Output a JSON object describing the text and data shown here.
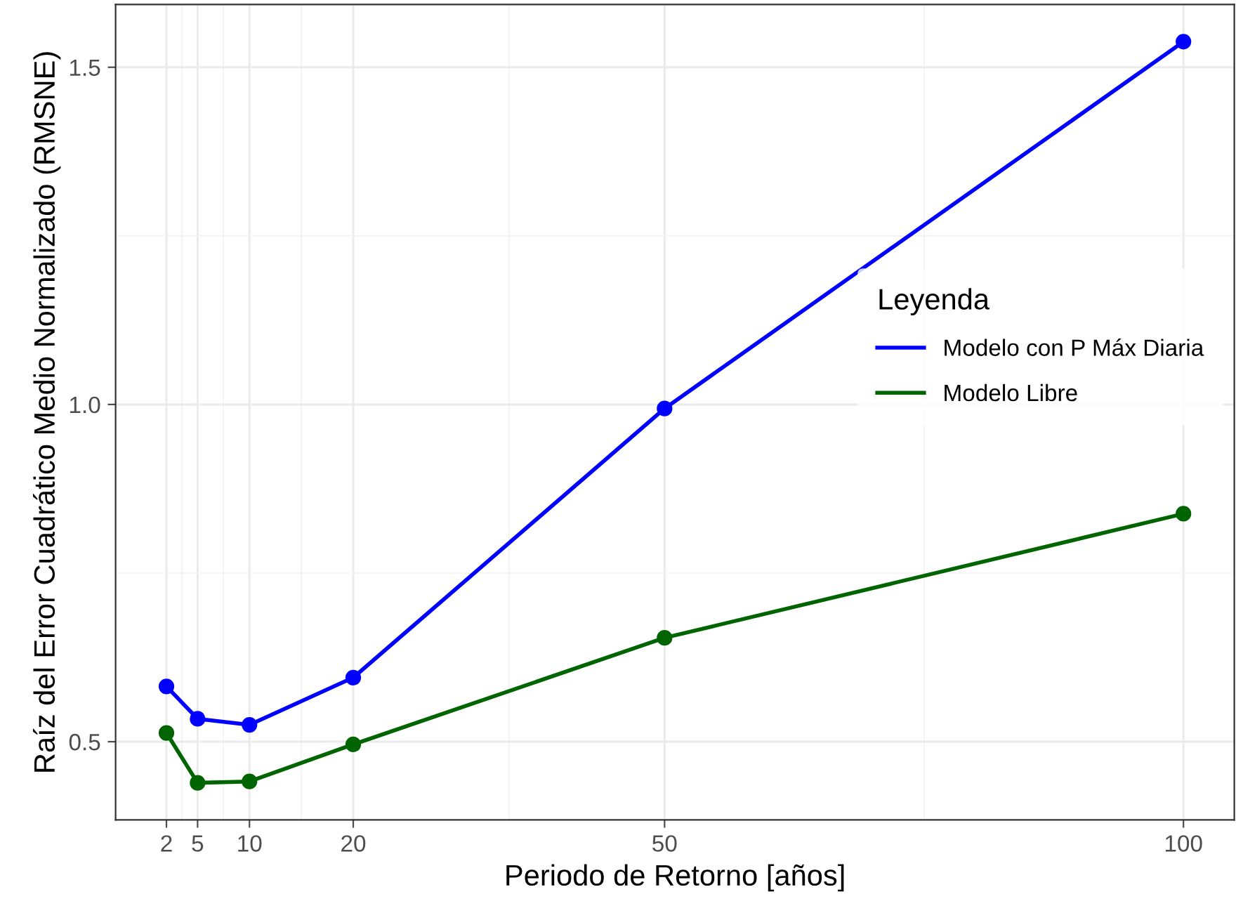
{
  "chart_data": {
    "type": "line",
    "xlabel": "Periodo de Retorno [años]",
    "ylabel": "Raíz del Error Cuadrático Medio Normalizado (RMSNE)",
    "legend_title": "Leyenda",
    "x": [
      2,
      5,
      10,
      20,
      50,
      100
    ],
    "series": [
      {
        "name": "Modelo con P Máx Diaria",
        "color": "#0000ff",
        "values": [
          0.582,
          0.534,
          0.525,
          0.595,
          0.994,
          1.538
        ]
      },
      {
        "name": "Modelo Libre",
        "color": "#006400",
        "values": [
          0.513,
          0.439,
          0.441,
          0.496,
          0.654,
          0.838
        ]
      }
    ],
    "xlim": [
      -2.9,
      104.9
    ],
    "ylim": [
      0.384,
      1.593
    ],
    "xticks": [
      2,
      5,
      10,
      20,
      50,
      100
    ],
    "yticks": [
      0.5,
      {
        "value": 1.0,
        "label": "1.0"
      },
      1.5
    ],
    "grid": true,
    "legend": "right",
    "marker": "circle",
    "line_style": "solid"
  }
}
